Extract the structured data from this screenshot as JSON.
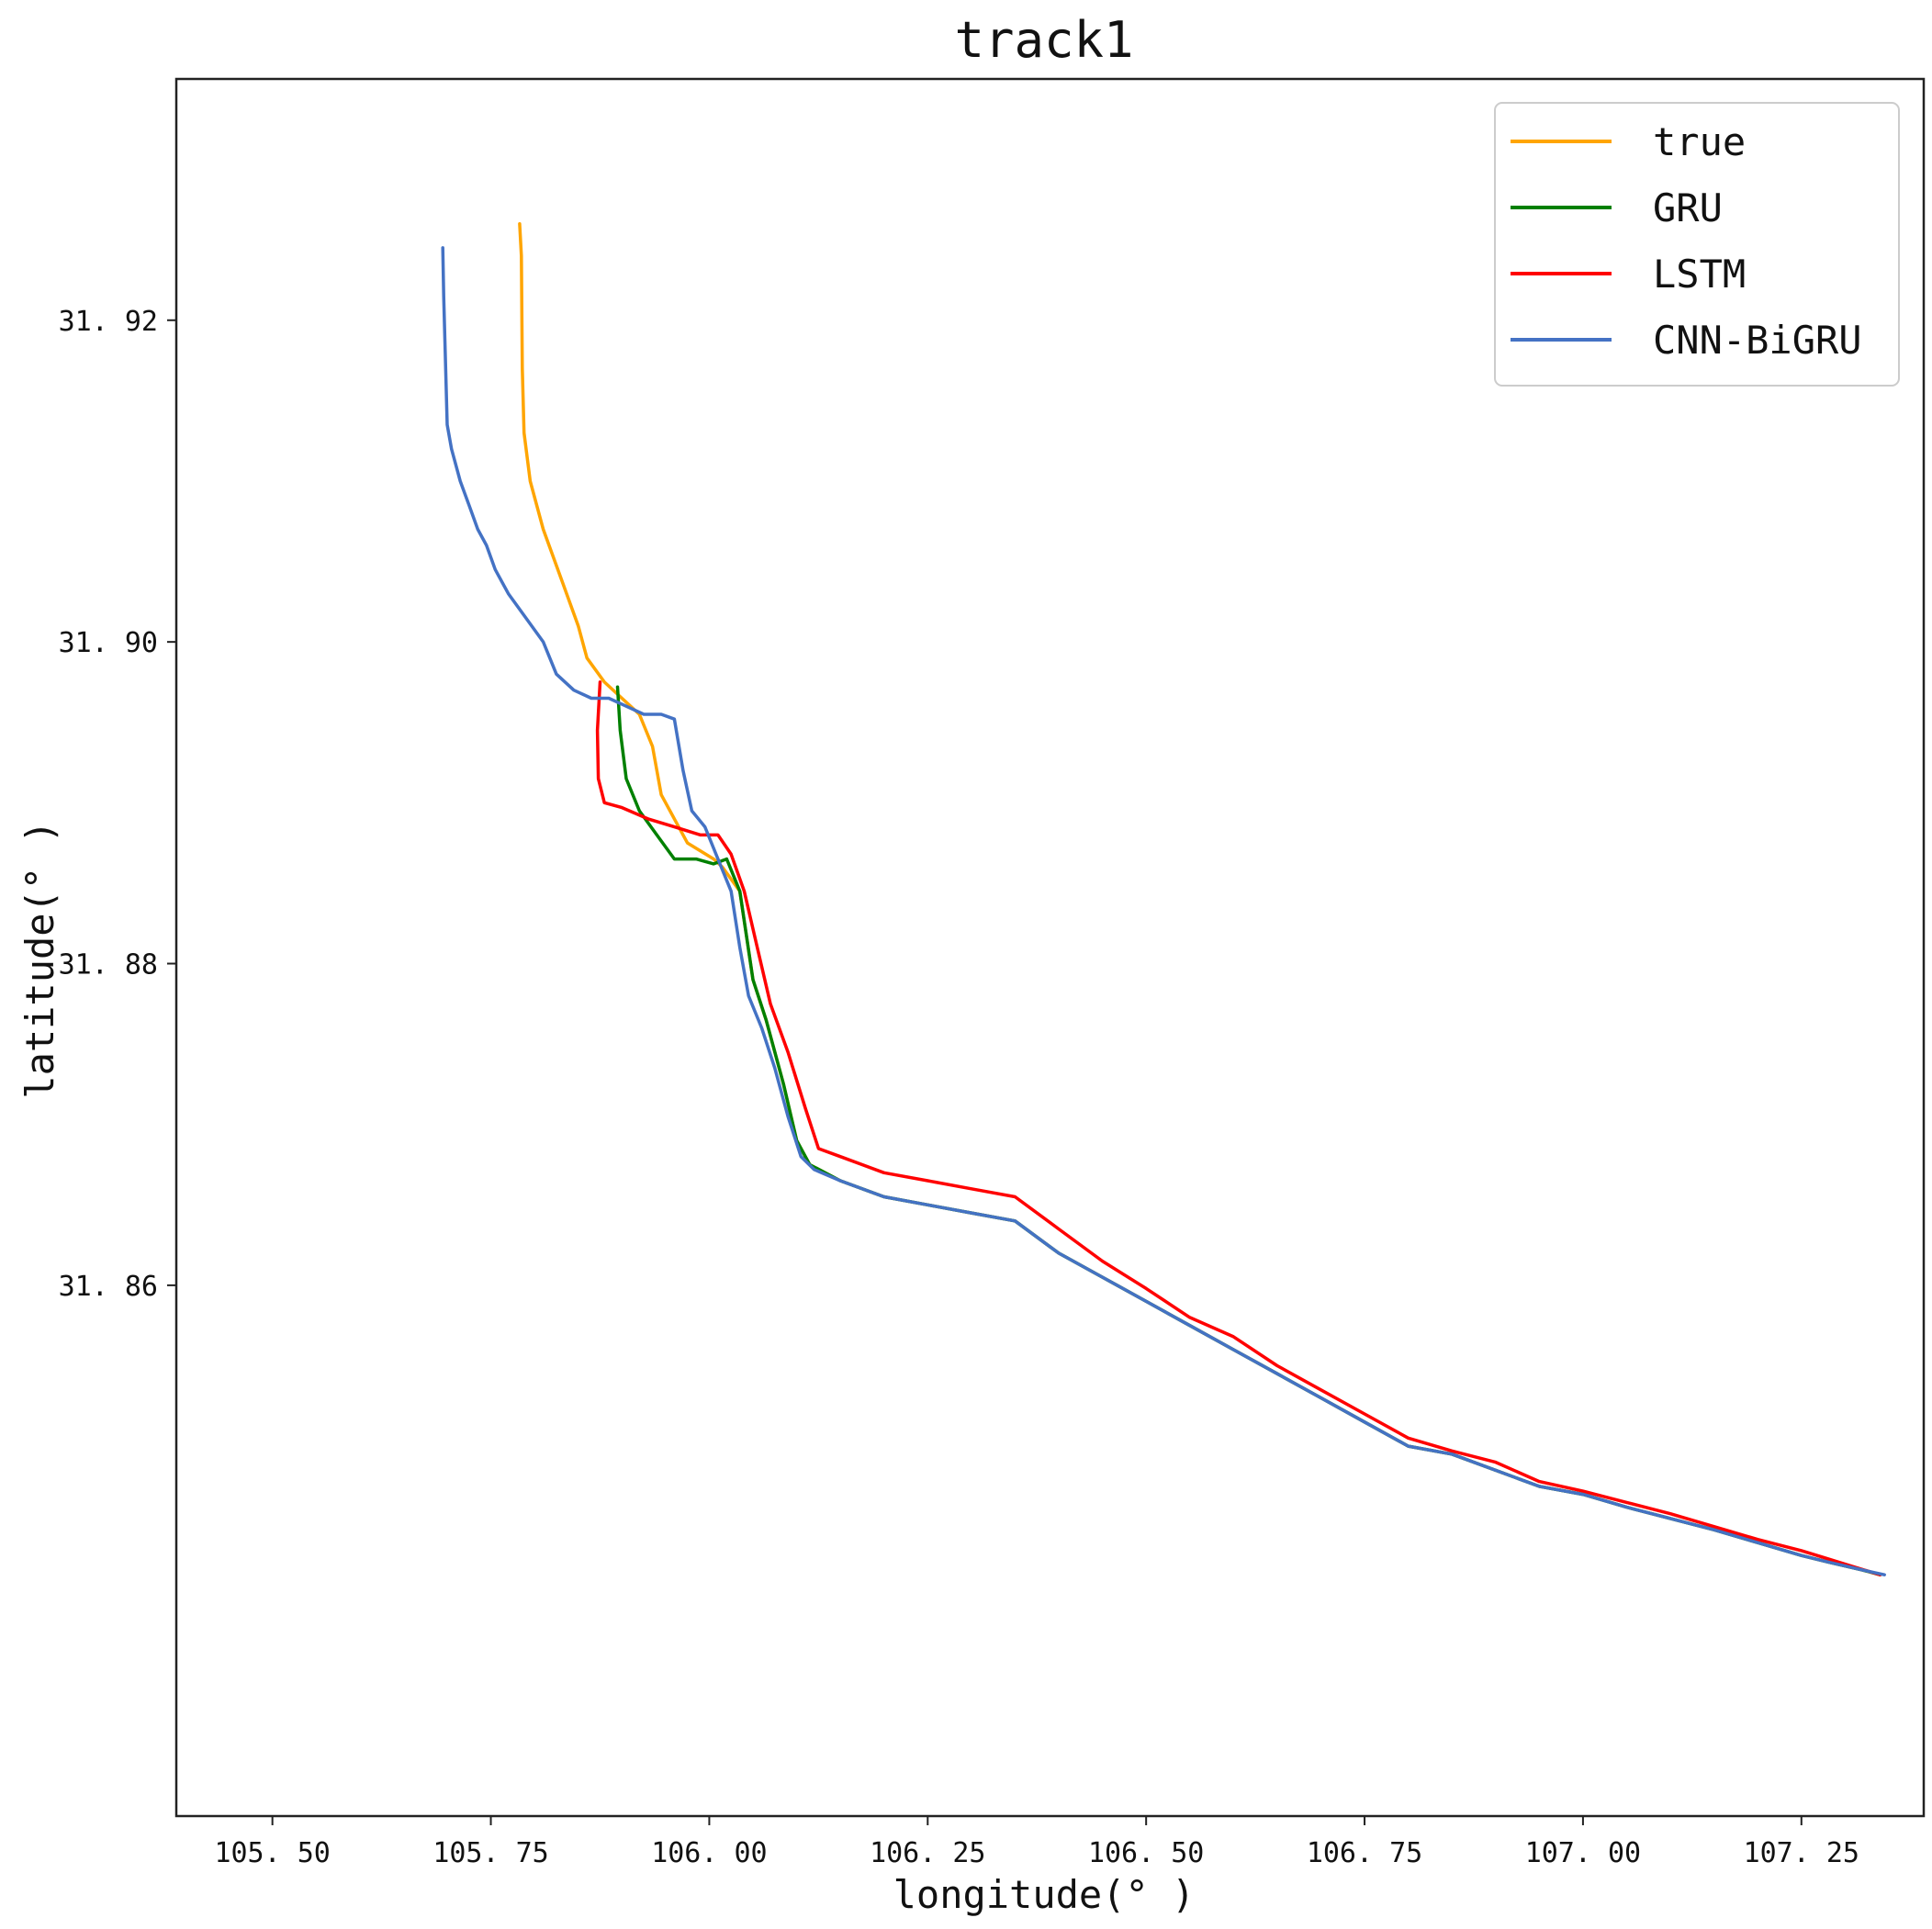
{
  "chart_data": {
    "type": "line",
    "title": "track1",
    "xlabel": "longitude(° )",
    "ylabel": "latitude(° )",
    "xlim": [
      105.39,
      107.39
    ],
    "ylim": [
      31.827,
      31.935
    ],
    "xticks": [
      105.5,
      105.75,
      106.0,
      106.25,
      106.5,
      106.75,
      107.0,
      107.25
    ],
    "xtick_labels": [
      "105. 50",
      "105. 75",
      "106. 00",
      "106. 25",
      "106. 50",
      "106. 75",
      "107. 00",
      "107. 25"
    ],
    "yticks": [
      31.86,
      31.88,
      31.9,
      31.92
    ],
    "ytick_labels": [
      "31. 86",
      "31. 88",
      "31. 90",
      "31. 92"
    ],
    "grid": false,
    "legend": "top-right",
    "series": [
      {
        "name": "true",
        "color": "#FFA500",
        "points": [
          [
            105.783,
            31.926
          ],
          [
            105.785,
            31.924
          ],
          [
            105.786,
            31.917
          ],
          [
            105.788,
            31.913
          ],
          [
            105.795,
            31.91
          ],
          [
            105.81,
            31.907
          ],
          [
            105.83,
            31.904
          ],
          [
            105.85,
            31.901
          ],
          [
            105.86,
            31.899
          ],
          [
            105.88,
            31.8975
          ],
          [
            105.9,
            31.8965
          ],
          [
            105.92,
            31.8955
          ],
          [
            105.935,
            31.8935
          ],
          [
            105.945,
            31.8905
          ],
          [
            105.96,
            31.889
          ],
          [
            105.975,
            31.8875
          ],
          [
            105.99,
            31.887
          ],
          [
            106.005,
            31.8865
          ],
          [
            106.015,
            31.886
          ],
          [
            106.035,
            31.8845
          ],
          [
            106.05,
            31.879
          ],
          [
            106.065,
            31.8765
          ],
          [
            106.085,
            31.8725
          ],
          [
            106.1,
            31.869
          ],
          [
            106.115,
            31.8675
          ],
          [
            106.15,
            31.8665
          ],
          [
            106.2,
            31.8655
          ],
          [
            106.25,
            31.865
          ],
          [
            106.3,
            31.8645
          ],
          [
            106.35,
            31.864
          ],
          [
            106.4,
            31.862
          ],
          [
            106.45,
            31.8605
          ],
          [
            106.5,
            31.859
          ],
          [
            106.55,
            31.8575
          ],
          [
            106.6,
            31.856
          ],
          [
            106.65,
            31.8545
          ],
          [
            106.7,
            31.853
          ],
          [
            106.75,
            31.8515
          ],
          [
            106.8,
            31.85
          ],
          [
            106.85,
            31.8495
          ],
          [
            106.9,
            31.8485
          ],
          [
            106.95,
            31.8475
          ],
          [
            107.0,
            31.847
          ],
          [
            107.05,
            31.8462
          ],
          [
            107.1,
            31.8455
          ],
          [
            107.15,
            31.8448
          ],
          [
            107.2,
            31.844
          ],
          [
            107.25,
            31.8432
          ],
          [
            107.28,
            31.8428
          ],
          [
            107.32,
            31.8423
          ],
          [
            107.34,
            31.842
          ]
        ]
      },
      {
        "name": "GRU",
        "color": "#008000",
        "points": [
          [
            105.895,
            31.8972
          ],
          [
            105.898,
            31.8945
          ],
          [
            105.905,
            31.8915
          ],
          [
            105.92,
            31.8895
          ],
          [
            105.94,
            31.888
          ],
          [
            105.96,
            31.8865
          ],
          [
            105.985,
            31.8865
          ],
          [
            106.005,
            31.8862
          ],
          [
            106.02,
            31.8865
          ],
          [
            106.035,
            31.8845
          ],
          [
            106.05,
            31.879
          ],
          [
            106.065,
            31.8765
          ],
          [
            106.085,
            31.8725
          ],
          [
            106.1,
            31.869
          ],
          [
            106.115,
            31.8675
          ],
          [
            106.15,
            31.8665
          ],
          [
            106.2,
            31.8655
          ],
          [
            106.25,
            31.865
          ],
          [
            106.3,
            31.8645
          ],
          [
            106.35,
            31.864
          ],
          [
            106.4,
            31.862
          ],
          [
            106.45,
            31.8605
          ],
          [
            106.5,
            31.859
          ],
          [
            106.55,
            31.8575
          ],
          [
            106.6,
            31.856
          ],
          [
            106.65,
            31.8545
          ],
          [
            106.7,
            31.853
          ],
          [
            106.75,
            31.8515
          ],
          [
            106.8,
            31.85
          ],
          [
            106.85,
            31.8495
          ],
          [
            106.9,
            31.8485
          ],
          [
            106.95,
            31.8475
          ],
          [
            107.0,
            31.847
          ],
          [
            107.05,
            31.8462
          ],
          [
            107.1,
            31.8455
          ],
          [
            107.15,
            31.8448
          ],
          [
            107.2,
            31.844
          ],
          [
            107.25,
            31.8432
          ],
          [
            107.28,
            31.8428
          ],
          [
            107.32,
            31.8423
          ],
          [
            107.34,
            31.842
          ]
        ]
      },
      {
        "name": "LSTM",
        "color": "#FF0000",
        "points": [
          [
            105.875,
            31.8975
          ],
          [
            105.872,
            31.8945
          ],
          [
            105.873,
            31.8915
          ],
          [
            105.88,
            31.89
          ],
          [
            105.9,
            31.8897
          ],
          [
            105.93,
            31.889
          ],
          [
            105.96,
            31.8885
          ],
          [
            105.99,
            31.888
          ],
          [
            106.01,
            31.888
          ],
          [
            106.025,
            31.8868
          ],
          [
            106.04,
            31.8845
          ],
          [
            106.055,
            31.881
          ],
          [
            106.07,
            31.8775
          ],
          [
            106.09,
            31.8745
          ],
          [
            106.11,
            31.871
          ],
          [
            106.125,
            31.8685
          ],
          [
            106.15,
            31.868
          ],
          [
            106.2,
            31.867
          ],
          [
            106.25,
            31.8665
          ],
          [
            106.3,
            31.866
          ],
          [
            106.35,
            31.8655
          ],
          [
            106.4,
            31.8635
          ],
          [
            106.45,
            31.8615
          ],
          [
            106.5,
            31.8598
          ],
          [
            106.55,
            31.858
          ],
          [
            106.6,
            31.8568
          ],
          [
            106.65,
            31.855
          ],
          [
            106.7,
            31.8535
          ],
          [
            106.75,
            31.852
          ],
          [
            106.8,
            31.8505
          ],
          [
            106.85,
            31.8497
          ],
          [
            106.9,
            31.849
          ],
          [
            106.95,
            31.8478
          ],
          [
            107.0,
            31.8472
          ],
          [
            107.05,
            31.8465
          ],
          [
            107.1,
            31.8458
          ],
          [
            107.15,
            31.845
          ],
          [
            107.2,
            31.8442
          ],
          [
            107.25,
            31.8435
          ],
          [
            107.28,
            31.843
          ],
          [
            107.31,
            31.8425
          ],
          [
            107.34,
            31.842
          ]
        ]
      },
      {
        "name": "CNN-BiGRU",
        "color": "#4472C4",
        "points": [
          [
            105.695,
            31.9245
          ],
          [
            105.696,
            31.9215
          ],
          [
            105.698,
            31.9175
          ],
          [
            105.7,
            31.9135
          ],
          [
            105.705,
            31.912
          ],
          [
            105.715,
            31.91
          ],
          [
            105.725,
            31.9085
          ],
          [
            105.735,
            31.907
          ],
          [
            105.745,
            31.906
          ],
          [
            105.755,
            31.9045
          ],
          [
            105.77,
            31.903
          ],
          [
            105.79,
            31.9015
          ],
          [
            105.81,
            31.9
          ],
          [
            105.825,
            31.898
          ],
          [
            105.845,
            31.897
          ],
          [
            105.865,
            31.8965
          ],
          [
            105.885,
            31.8965
          ],
          [
            105.905,
            31.896
          ],
          [
            105.925,
            31.8955
          ],
          [
            105.945,
            31.8955
          ],
          [
            105.96,
            31.8952
          ],
          [
            105.97,
            31.892
          ],
          [
            105.98,
            31.8895
          ],
          [
            105.995,
            31.8885
          ],
          [
            106.01,
            31.8865
          ],
          [
            106.025,
            31.8845
          ],
          [
            106.035,
            31.881
          ],
          [
            106.045,
            31.878
          ],
          [
            106.06,
            31.876
          ],
          [
            106.075,
            31.8735
          ],
          [
            106.09,
            31.8705
          ],
          [
            106.105,
            31.868
          ],
          [
            106.12,
            31.8672
          ],
          [
            106.15,
            31.8665
          ],
          [
            106.2,
            31.8655
          ],
          [
            106.25,
            31.865
          ],
          [
            106.3,
            31.8645
          ],
          [
            106.35,
            31.864
          ],
          [
            106.4,
            31.862
          ],
          [
            106.45,
            31.8605
          ],
          [
            106.5,
            31.859
          ],
          [
            106.55,
            31.8575
          ],
          [
            106.6,
            31.856
          ],
          [
            106.65,
            31.8545
          ],
          [
            106.7,
            31.853
          ],
          [
            106.75,
            31.8515
          ],
          [
            106.8,
            31.85
          ],
          [
            106.85,
            31.8495
          ],
          [
            106.9,
            31.8485
          ],
          [
            106.95,
            31.8475
          ],
          [
            107.0,
            31.847
          ],
          [
            107.05,
            31.8462
          ],
          [
            107.1,
            31.8455
          ],
          [
            107.15,
            31.8448
          ],
          [
            107.2,
            31.844
          ],
          [
            107.25,
            31.8432
          ],
          [
            107.28,
            31.8428
          ],
          [
            107.32,
            31.8423
          ],
          [
            107.345,
            31.842
          ]
        ]
      }
    ]
  }
}
